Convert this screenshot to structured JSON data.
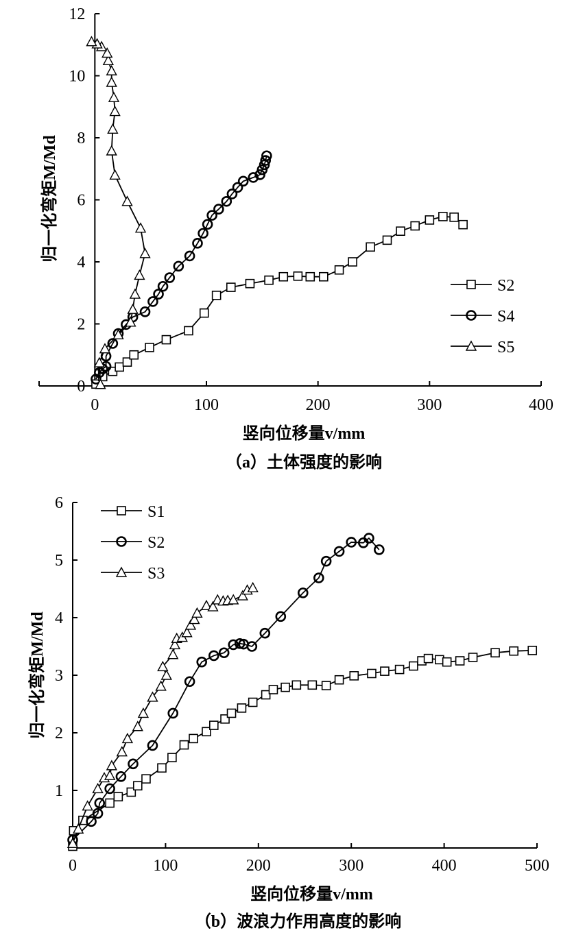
{
  "chart_data": [
    {
      "type": "line",
      "title": "",
      "caption": "（a）土体强度的影响",
      "xlabel": "竖向位移量v/mm",
      "ylabel": "归一化弯矩M/Md",
      "xlim": [
        -50,
        400
      ],
      "ylim": [
        0,
        12
      ],
      "xticks": [
        0,
        100,
        200,
        300,
        400
      ],
      "yticks": [
        0,
        2,
        4,
        6,
        8,
        10,
        12
      ],
      "grid": false,
      "legend": "right",
      "series": [
        {
          "name": "S2",
          "marker": "square",
          "x": [
            1,
            7,
            16,
            22,
            29,
            35,
            49,
            64,
            84,
            98,
            109,
            122,
            139,
            156,
            169,
            182,
            193,
            205,
            219,
            231,
            247,
            262,
            274,
            287,
            300,
            312,
            322,
            330
          ],
          "y": [
            0.06,
            0.3,
            0.47,
            0.61,
            0.77,
            1.0,
            1.24,
            1.49,
            1.78,
            2.35,
            2.92,
            3.18,
            3.3,
            3.41,
            3.52,
            3.54,
            3.52,
            3.52,
            3.74,
            4.0,
            4.48,
            4.7,
            4.99,
            5.16,
            5.35,
            5.46,
            5.44,
            5.2
          ]
        },
        {
          "name": "S4",
          "marker": "circle",
          "x": [
            1,
            4,
            7,
            10,
            10,
            16,
            21,
            28,
            34,
            45,
            52,
            57,
            61,
            67,
            75,
            85,
            92,
            97,
            101,
            105,
            111,
            118,
            123,
            128,
            133,
            142,
            148,
            150,
            152,
            153,
            154
          ],
          "y": [
            0.22,
            0.43,
            0.55,
            0.63,
            0.96,
            1.37,
            1.69,
            1.98,
            2.22,
            2.39,
            2.72,
            2.96,
            3.21,
            3.49,
            3.86,
            4.19,
            4.6,
            4.92,
            5.21,
            5.5,
            5.7,
            5.95,
            6.19,
            6.4,
            6.6,
            6.72,
            6.81,
            6.97,
            7.13,
            7.27,
            7.42
          ]
        },
        {
          "name": "S5",
          "marker": "triangle",
          "x": [
            5,
            4,
            9,
            21,
            32,
            34,
            36,
            40,
            45,
            41,
            29,
            18,
            15,
            16,
            18,
            17,
            15,
            15,
            12,
            11,
            6,
            2,
            -3
          ],
          "y": [
            0.05,
            0.75,
            1.2,
            1.65,
            2.06,
            2.47,
            2.96,
            3.57,
            4.27,
            5.09,
            5.95,
            6.8,
            7.58,
            8.28,
            8.85,
            9.3,
            9.79,
            10.16,
            10.49,
            10.73,
            10.94,
            11.03,
            11.1
          ]
        }
      ]
    },
    {
      "type": "line",
      "title": "",
      "caption": "（b）波浪力作用高度的影响",
      "xlabel": "竖向位移量v/mm",
      "ylabel": "归一化弯矩M/Md",
      "xlim": [
        0,
        500
      ],
      "ylim": [
        0,
        6
      ],
      "xticks": [
        0,
        100,
        200,
        300,
        400,
        500
      ],
      "yticks": [
        1,
        2,
        3,
        4,
        5,
        6
      ],
      "grid": false,
      "legend": "top-left",
      "series": [
        {
          "name": "S1",
          "marker": "square",
          "x": [
            0,
            1,
            11,
            40,
            49,
            63,
            70,
            79,
            96,
            107,
            120,
            130,
            144,
            152,
            164,
            171,
            182,
            194,
            208,
            216,
            229,
            241,
            258,
            273,
            287,
            303,
            322,
            336,
            352,
            367,
            376,
            383,
            395,
            403,
            417,
            431,
            455,
            475,
            495
          ],
          "y": [
            0.03,
            0.3,
            0.48,
            0.78,
            0.89,
            0.97,
            1.08,
            1.2,
            1.39,
            1.57,
            1.79,
            1.9,
            2.02,
            2.13,
            2.24,
            2.34,
            2.43,
            2.53,
            2.66,
            2.75,
            2.79,
            2.83,
            2.83,
            2.82,
            2.92,
            2.99,
            3.03,
            3.07,
            3.1,
            3.16,
            3.25,
            3.29,
            3.27,
            3.23,
            3.25,
            3.31,
            3.39,
            3.42,
            3.43
          ]
        },
        {
          "name": "S2",
          "marker": "circle",
          "x": [
            0,
            20,
            27,
            29,
            40,
            52,
            65,
            86,
            108,
            126,
            139,
            152,
            163,
            173,
            180,
            184,
            193,
            207,
            224,
            248,
            265,
            273,
            287,
            300,
            313,
            319,
            330
          ],
          "y": [
            0.14,
            0.46,
            0.6,
            0.78,
            1.03,
            1.24,
            1.46,
            1.78,
            2.34,
            2.89,
            3.23,
            3.34,
            3.39,
            3.53,
            3.55,
            3.54,
            3.5,
            3.73,
            4.02,
            4.43,
            4.69,
            4.98,
            5.15,
            5.31,
            5.3,
            5.38,
            5.18
          ]
        },
        {
          "name": "S3",
          "marker": "triangle",
          "x": [
            0,
            6,
            16,
            27,
            34,
            40,
            42,
            53,
            59,
            70,
            76,
            86,
            95,
            101,
            97,
            108,
            110,
            112,
            118,
            123,
            127,
            131,
            134,
            144,
            151,
            156,
            162,
            167,
            173,
            183,
            188,
            194
          ],
          "y": [
            0.08,
            0.33,
            0.73,
            1.03,
            1.22,
            1.26,
            1.43,
            1.67,
            1.9,
            2.11,
            2.34,
            2.62,
            2.81,
            3.0,
            3.15,
            3.36,
            3.53,
            3.64,
            3.66,
            3.74,
            3.87,
            3.97,
            4.08,
            4.21,
            4.19,
            4.31,
            4.29,
            4.3,
            4.31,
            4.38,
            4.48,
            4.52
          ]
        }
      ]
    }
  ]
}
